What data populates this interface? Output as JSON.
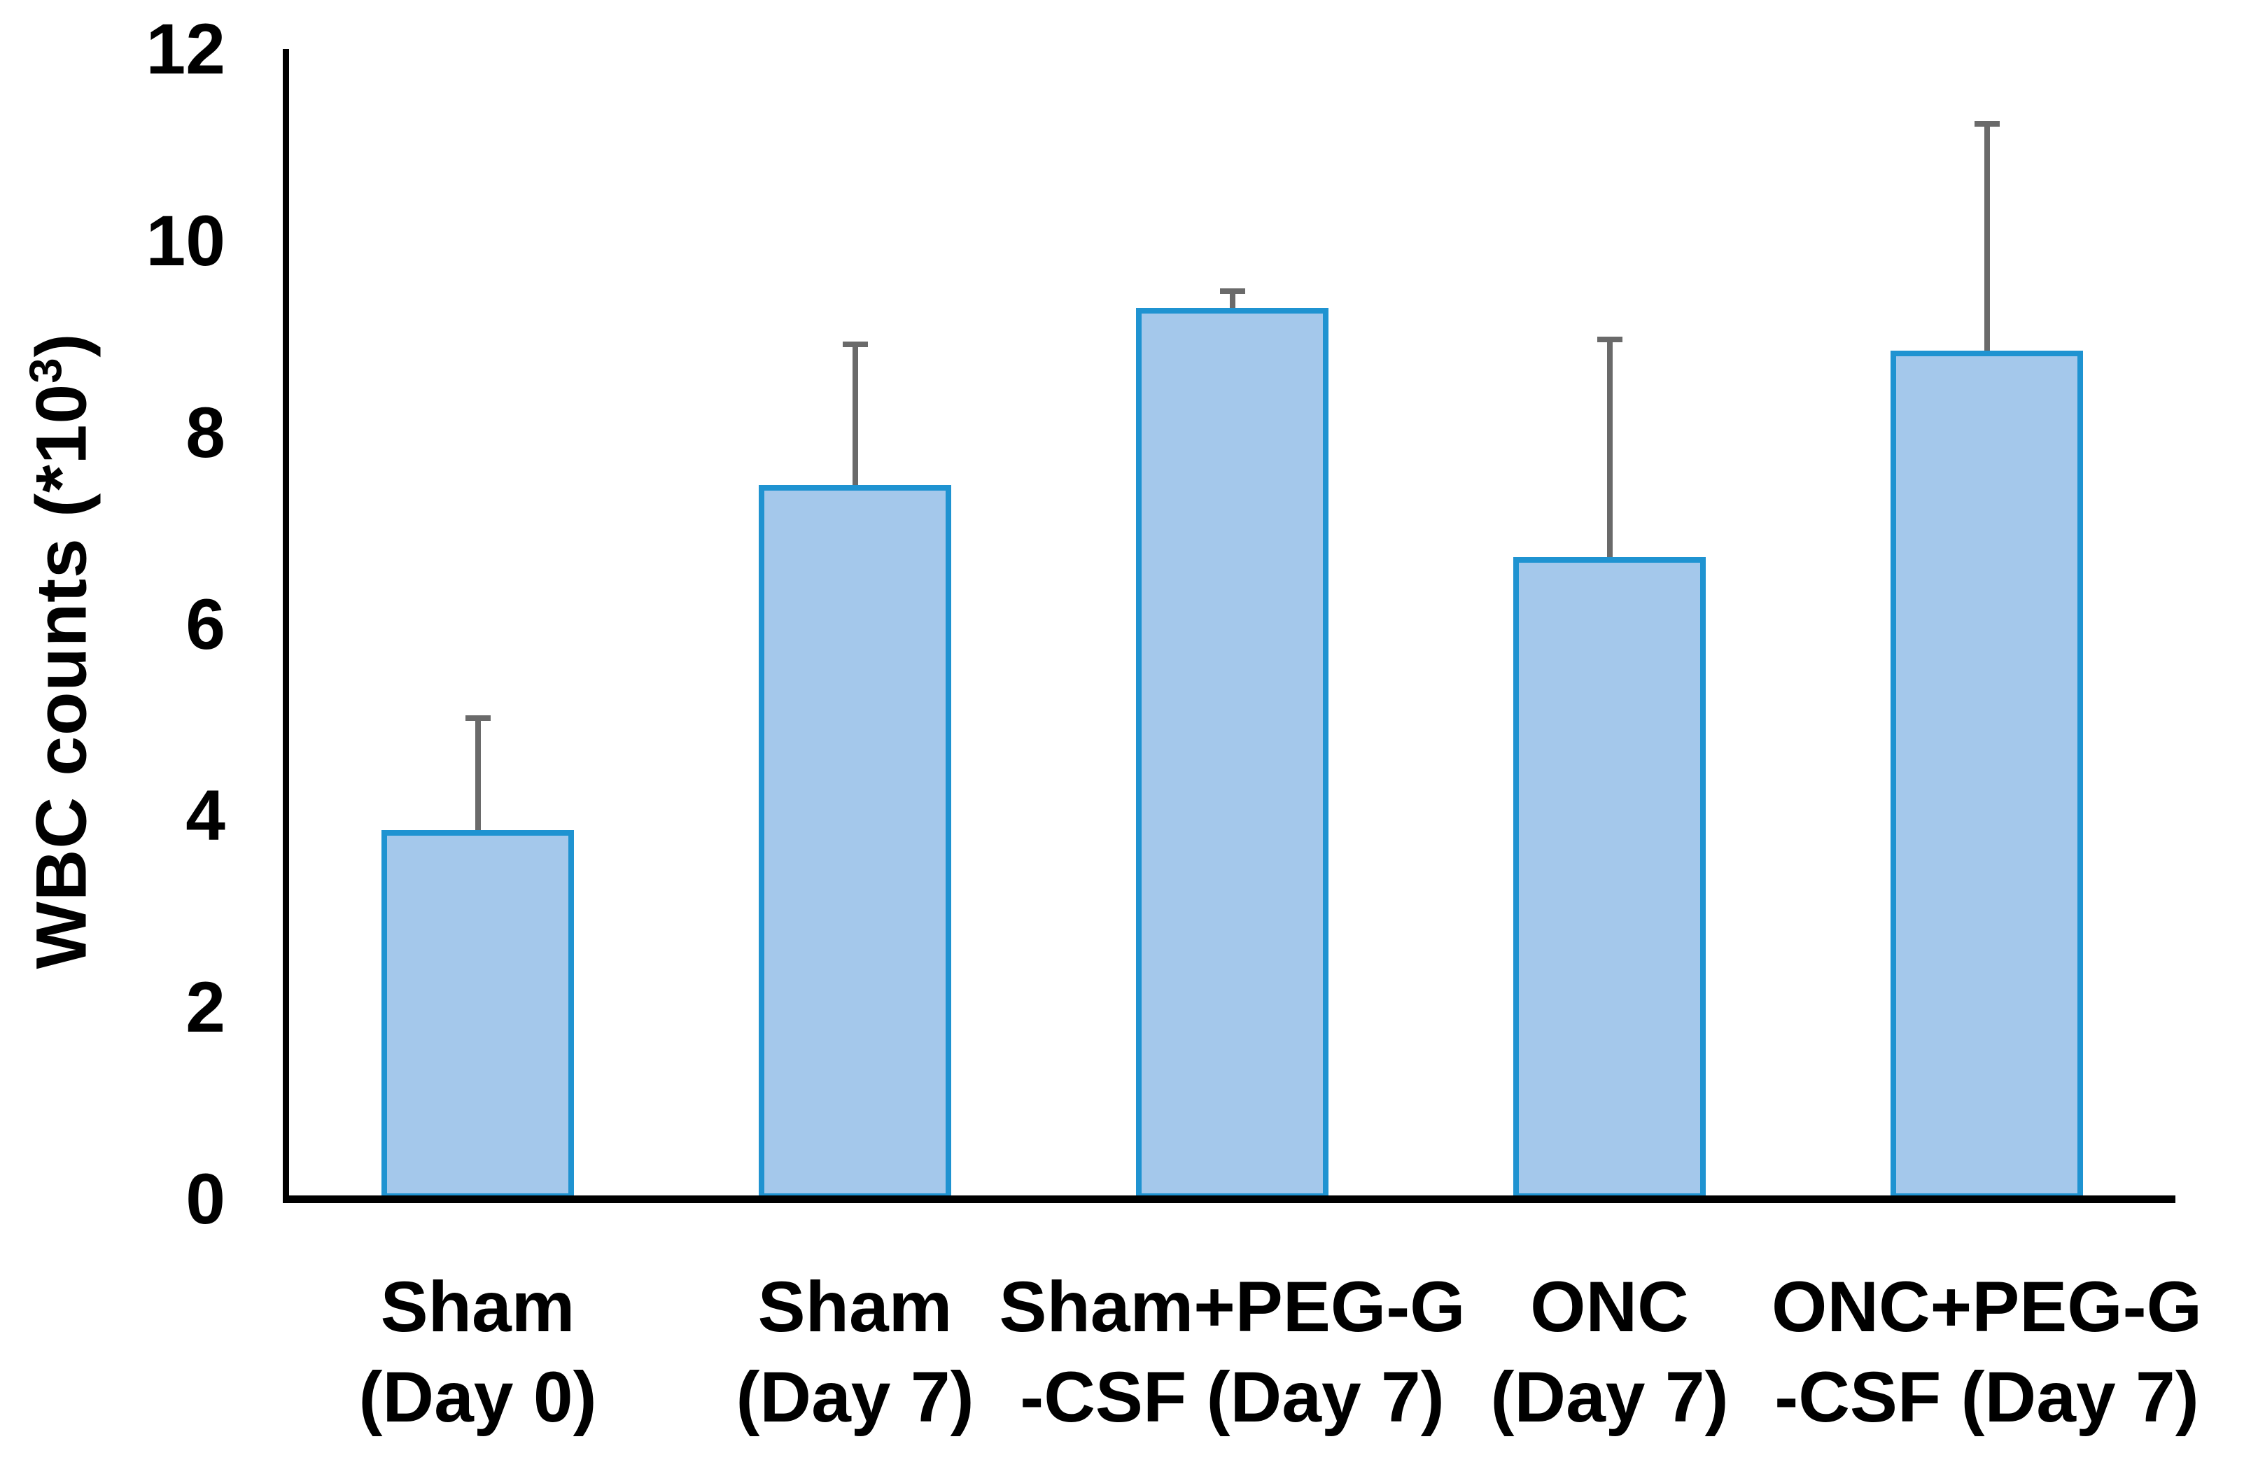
{
  "chart_data": {
    "type": "bar",
    "title": "",
    "ylabel": "WBC counts (*10³)",
    "ylabel_parts": {
      "prefix": "WBC counts (*10",
      "sup": "3",
      "suffix": ")"
    },
    "xlabel": "",
    "ylim": [
      0,
      12
    ],
    "yticks": [
      0,
      2,
      4,
      6,
      8,
      10,
      12
    ],
    "grid": false,
    "legend": null,
    "categories": [
      [
        "Sham",
        "(Day 0)"
      ],
      [
        "Sham",
        "(Day 7)"
      ],
      [
        "Sham+PEG-G",
        "-CSF (Day 7)"
      ],
      [
        "ONC",
        "(Day 7)"
      ],
      [
        "ONC+PEG-G",
        "-CSF (Day 7)"
      ]
    ],
    "series": [
      {
        "name": "WBC counts",
        "values": [
          3.85,
          7.45,
          9.3,
          6.7,
          8.85
        ],
        "errors_up": [
          1.2,
          1.5,
          0.2,
          2.3,
          2.4
        ]
      }
    ],
    "colors": {
      "bar_fill": "#A4C8EB",
      "bar_border": "#1F93D1",
      "error_bar": "#6A6A6A",
      "axis": "#000000",
      "text": "#000000"
    }
  }
}
